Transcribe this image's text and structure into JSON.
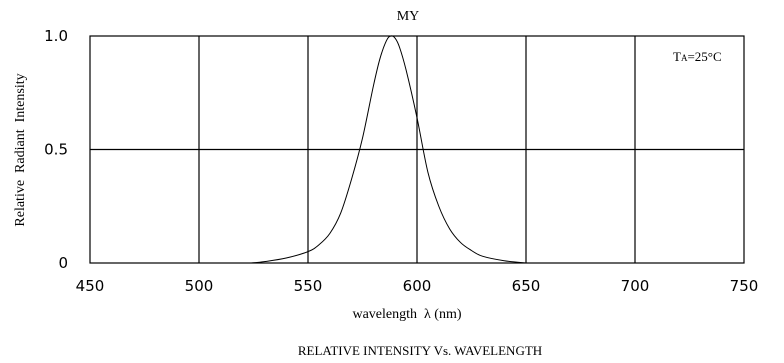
{
  "chart_data": {
    "type": "line",
    "title": "MY",
    "caption": "RELATIVE INTENSITY Vs. WAVELENGTH",
    "xlabel": "wavelength  λ (nm)",
    "ylabel": "Relative  Radiant  Intensity",
    "annotation": {
      "prefix": "T",
      "sub": "A",
      "text": "=25°C"
    },
    "xlim": [
      450,
      750
    ],
    "ylim": [
      0,
      1.0
    ],
    "x_ticks": [
      450,
      500,
      550,
      600,
      650,
      700,
      750
    ],
    "x_tick_labels": [
      "450",
      "500",
      "550",
      "600",
      "650",
      "700",
      "750"
    ],
    "y_ticks": [
      0,
      0.5,
      1.0
    ],
    "y_tick_labels": [
      "0",
      "0.5",
      "1.0"
    ],
    "grid": true,
    "series": [
      {
        "x": [
          524,
          530,
          540,
          550,
          555,
          560,
          565,
          570,
          575,
          580,
          583,
          586,
          588,
          590,
          592,
          595,
          600,
          605,
          610,
          615,
          620,
          625,
          630,
          640,
          650
        ],
        "y": [
          0,
          0.006,
          0.022,
          0.05,
          0.08,
          0.13,
          0.22,
          0.37,
          0.55,
          0.78,
          0.9,
          0.98,
          1.0,
          0.99,
          0.95,
          0.85,
          0.64,
          0.4,
          0.25,
          0.15,
          0.09,
          0.055,
          0.03,
          0.01,
          0
        ]
      }
    ]
  }
}
